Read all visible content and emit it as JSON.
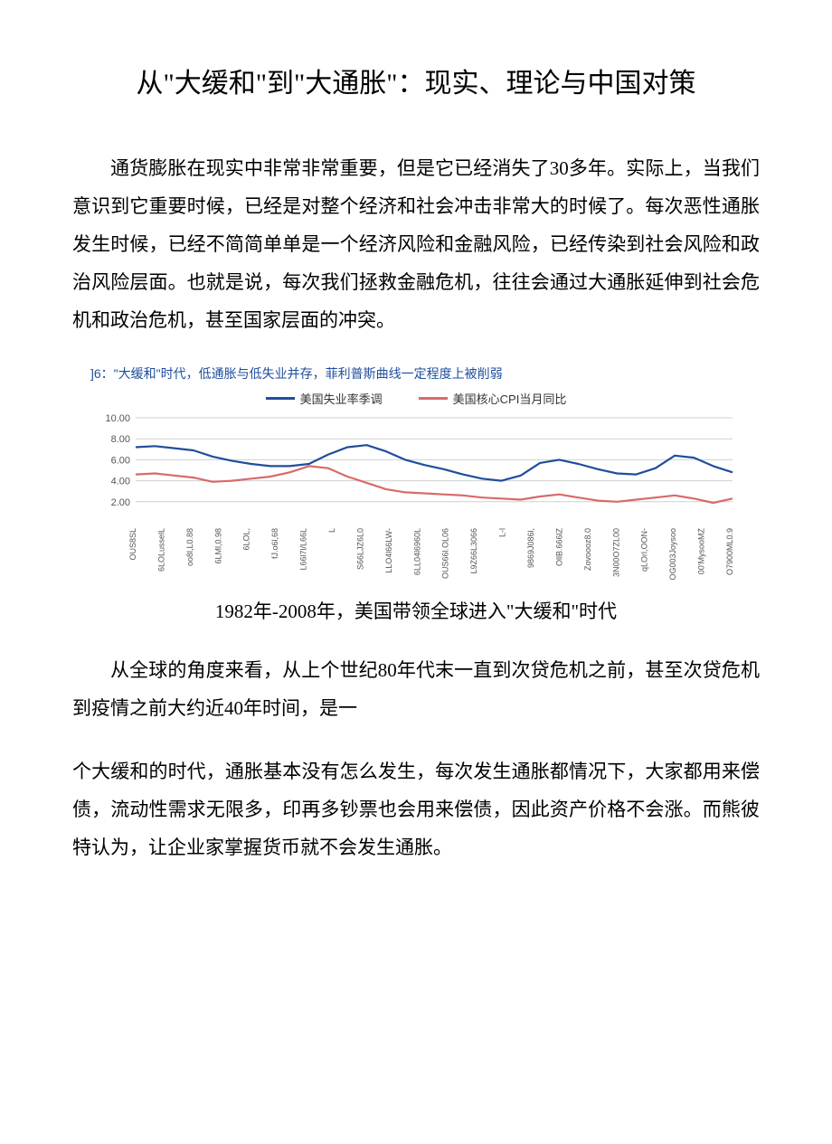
{
  "title": "从\"大缓和\"到\"大通胀\"：现实、理论与中国对策",
  "paragraphs": {
    "p1": "通货膨胀在现实中非常非常重要，但是它已经消失了30多年。实际上，当我们意识到它重要时候，已经是对整个经济和社会冲击非常大的时候了。每次恶性通胀发生时候，已经不简简单单是一个经济风险和金融风险，已经传染到社会风险和政治风险层面。也就是说，每次我们拯救金融危机，往往会通过大通胀延伸到社会危机和政治危机，甚至国家层面的冲突。",
    "p2": "从全球的角度来看，从上个世纪80年代末一直到次贷危机之前，甚至次贷危机到疫情之前大约近40年时间，是一",
    "p3": "个大缓和的时代，通胀基本没有怎么发生，每次发生通胀都情况下，大家都用来偿债，流动性需求无限多，印再多钞票也会用来偿债，因此资产价格不会涨。而熊彼特认为，让企业家掌握货币就不会发生通胀。"
  },
  "chart": {
    "type": "line",
    "heading": "]6：\"大缓和\"时代，低通胀与低失业并存，菲利普斯曲线一定程度上被削弱",
    "caption": "1982年-2008年，美国带领全球进入\"大缓和\"时代",
    "legend": {
      "series1": {
        "label": "美国失业率季调",
        "color": "#1f4e9c"
      },
      "series2": {
        "label": "美国核心CPI当月同比",
        "color": "#d96a6a"
      }
    },
    "ylim": [
      0,
      10
    ],
    "yticks": [
      "2.00",
      "4.00",
      "6.00",
      "8.00",
      "10.00"
    ],
    "ytick_values": [
      2,
      4,
      6,
      8,
      10
    ],
    "grid_color": "#d0d0d0",
    "background_color": "#ffffff",
    "axis_fontsize": 11,
    "axis_font_color": "#555555",
    "xlabels": [
      "OUS8SL",
      "6LOLusselL",
      "oo8l,L0.88",
      "6LMl,0.98",
      "6LOL,",
      "fJ.o6l,68",
      "L66l7l/L66L",
      "L",
      "S66LJZ6L0",
      "LLO4l66LW-",
      "6LL04l6960L",
      "OUS66l.OL06",
      "L9Z66L3066",
      "L-l",
      "9869J086l,",
      "OllB.666lZ",
      "Zovoooz8.0",
      "3N00O7ZL00",
      "qLOrl,OON-",
      "OG003Joysoo",
      "00'MysooMZ",
      "O7900ML0.9"
    ],
    "series1_values": [
      7.2,
      7.3,
      7.1,
      6.9,
      6.3,
      5.9,
      5.6,
      5.4,
      5.4,
      5.6,
      6.5,
      7.2,
      7.4,
      6.8,
      6.0,
      5.5,
      5.1,
      4.6,
      4.2,
      4.0,
      4.5,
      5.7,
      6.0,
      5.6,
      5.1,
      4.7,
      4.6,
      5.2,
      6.4,
      6.2,
      5.4,
      4.8
    ],
    "series2_values": [
      4.6,
      4.7,
      4.5,
      4.3,
      3.9,
      4.0,
      4.2,
      4.4,
      4.8,
      5.4,
      5.2,
      4.4,
      3.8,
      3.2,
      2.9,
      2.8,
      2.7,
      2.6,
      2.4,
      2.3,
      2.2,
      2.5,
      2.7,
      2.4,
      2.1,
      2.0,
      2.2,
      2.4,
      2.6,
      2.3,
      1.9,
      2.3
    ],
    "line_width": 2.2
  }
}
